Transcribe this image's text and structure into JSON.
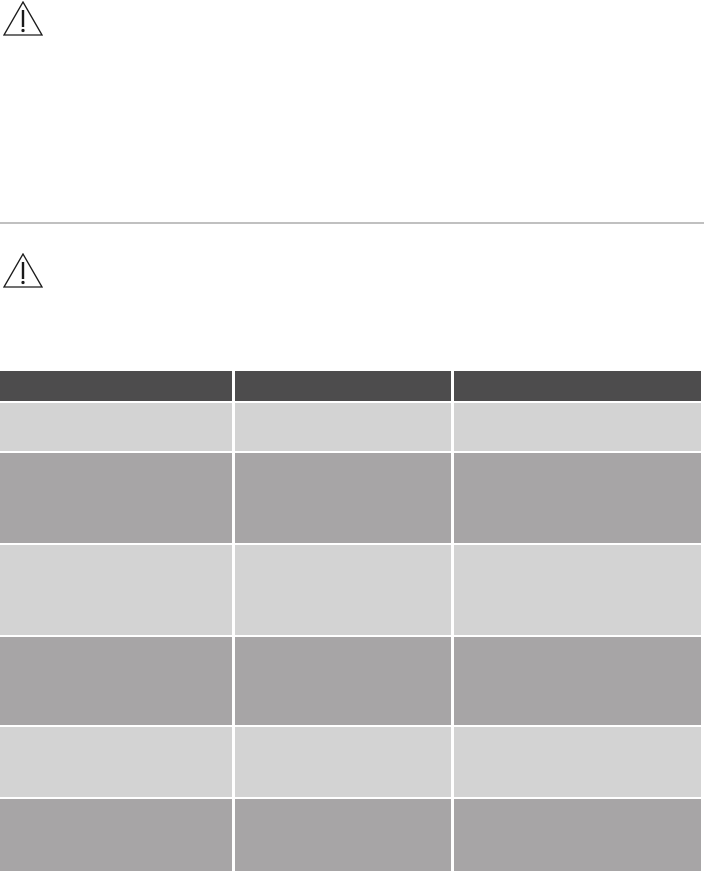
{
  "colors": {
    "divider": "#c0c0c0",
    "table_header": "#4d4c4d",
    "row_light": "#d3d3d3",
    "row_dark": "#a7a5a6",
    "icon": "#1a1a1a"
  },
  "warnings": [
    {
      "icon": "warning-triangle-icon"
    },
    {
      "icon": "warning-triangle-icon"
    }
  ],
  "table": {
    "columns": 3,
    "rows": [
      {
        "shade": "header"
      },
      {
        "shade": "light"
      },
      {
        "shade": "dark"
      },
      {
        "shade": "light"
      },
      {
        "shade": "dark"
      },
      {
        "shade": "light"
      },
      {
        "shade": "dark"
      }
    ]
  }
}
